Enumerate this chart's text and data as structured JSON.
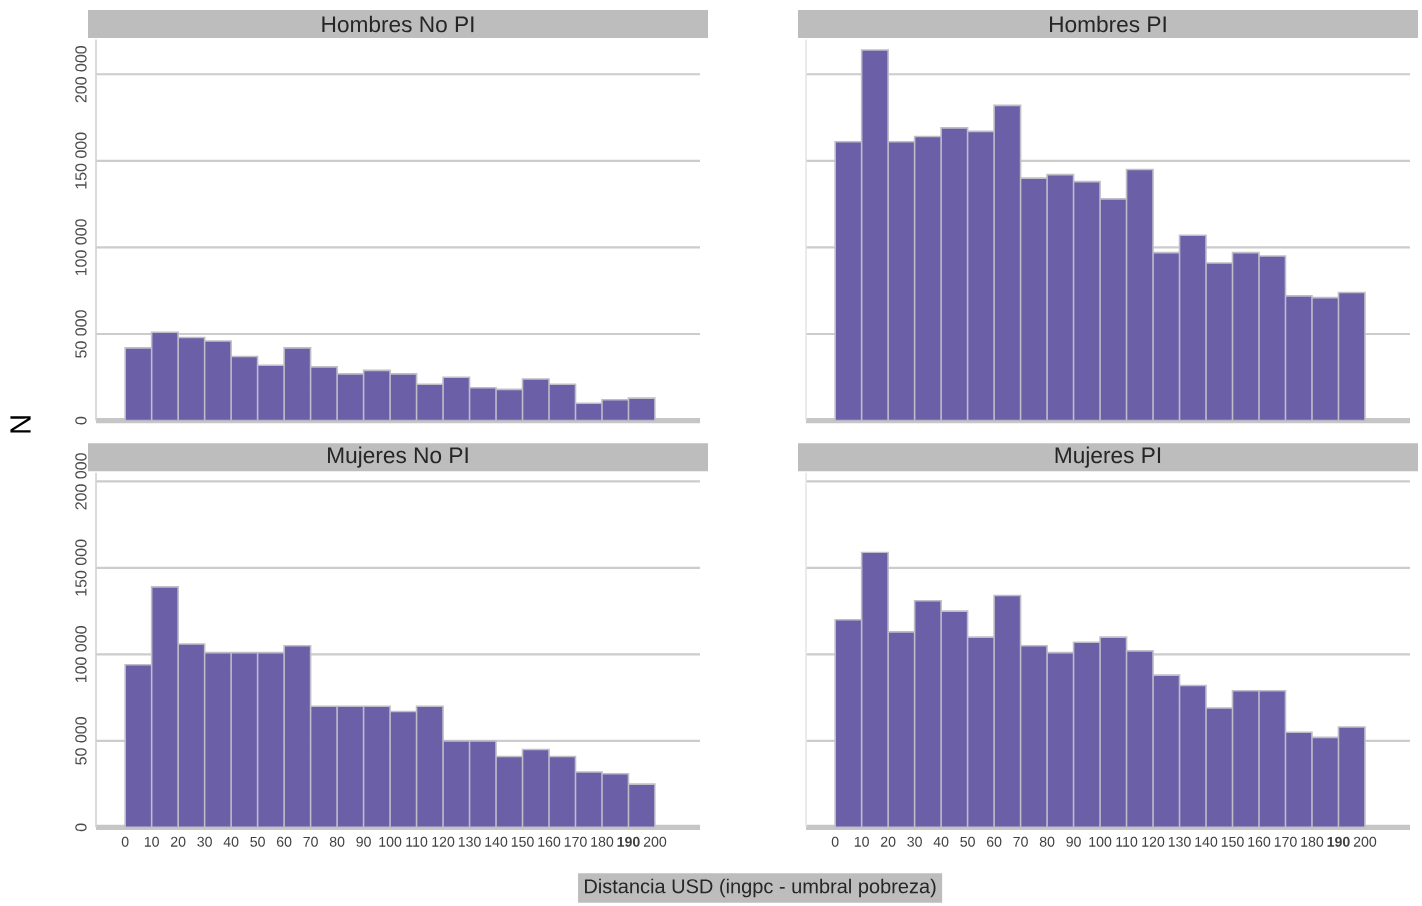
{
  "chart_data": [
    {
      "type": "histogram",
      "title": "Hombres No PI",
      "ylabel": "N",
      "color": "#6b5fa8",
      "bins": [
        0,
        10,
        20,
        30,
        40,
        50,
        60,
        70,
        80,
        90,
        100,
        110,
        120,
        130,
        140,
        150,
        160,
        170,
        180,
        190,
        200
      ],
      "values": [
        42000,
        51000,
        48000,
        46000,
        37000,
        32000,
        42000,
        31000,
        27000,
        29000,
        27000,
        21000,
        25000,
        19000,
        18000,
        24000,
        21000,
        10000,
        12000,
        13000
      ],
      "xlim": [
        -11,
        217
      ],
      "ylim": [
        0,
        220000
      ],
      "yticks": [
        0,
        {
          "value": 50000,
          "label": "50 000"
        },
        {
          "value": 100000,
          "label": "100 000"
        },
        {
          "value": 150000,
          "label": "150 000"
        },
        {
          "value": 200000,
          "label": "200 000"
        }
      ],
      "grid": "y",
      "tick_labels": "y"
    },
    {
      "type": "histogram",
      "title": "Hombres PI",
      "color": "#6b5fa8",
      "bins": [
        0,
        10,
        20,
        30,
        40,
        50,
        60,
        70,
        80,
        90,
        100,
        110,
        120,
        130,
        140,
        150,
        160,
        170,
        180,
        190,
        200
      ],
      "values": [
        161000,
        214000,
        161000,
        164000,
        169000,
        167000,
        182000,
        140000,
        142000,
        138000,
        128000,
        145000,
        97000,
        107000,
        91000,
        97000,
        95000,
        72000,
        71000,
        74000
      ],
      "xlim": [
        -11,
        217
      ],
      "ylim": [
        0,
        220000
      ],
      "yticks": [
        {
          "value": 0,
          "label": null
        },
        {
          "value": 50000,
          "label": null
        },
        {
          "value": 100000,
          "label": null
        },
        {
          "value": 150000,
          "label": null
        },
        {
          "value": 200000,
          "label": null
        }
      ],
      "grid": "y",
      "tick_labels": false
    },
    {
      "type": "histogram",
      "title": "Mujeres No PI",
      "color": "#6b5fa8",
      "bins": [
        0,
        10,
        20,
        30,
        40,
        50,
        60,
        70,
        80,
        90,
        100,
        110,
        120,
        130,
        140,
        150,
        160,
        170,
        180,
        190,
        200
      ],
      "values": [
        94000,
        139000,
        106000,
        101000,
        101000,
        101000,
        105000,
        70000,
        70000,
        70000,
        67000,
        70000,
        50000,
        50000,
        41000,
        45000,
        41000,
        32000,
        31000,
        25000
      ],
      "xlim": [
        -11,
        217
      ],
      "ylim": [
        0,
        205000
      ],
      "xticks": [
        0,
        10,
        20,
        30,
        40,
        50,
        60,
        70,
        80,
        90,
        100,
        110,
        120,
        130,
        140,
        150,
        160,
        170,
        180,
        {
          "value": 190,
          "label": "**190**"
        },
        200
      ],
      "yticks": [
        0,
        {
          "value": 50000,
          "label": "50 000"
        },
        {
          "value": 100000,
          "label": "100 000"
        },
        {
          "value": 150000,
          "label": "150 000"
        },
        {
          "value": 200000,
          "label": "200 000"
        }
      ],
      "grid": "y"
    },
    {
      "type": "histogram",
      "title": "Mujeres PI",
      "xlabel": "Distancia USD (ingpc - umbral pobreza)",
      "color": "#6b5fa8",
      "bins": [
        0,
        10,
        20,
        30,
        40,
        50,
        60,
        70,
        80,
        90,
        100,
        110,
        120,
        130,
        140,
        150,
        160,
        170,
        180,
        190,
        200
      ],
      "values": [
        120000,
        159000,
        113000,
        131000,
        125000,
        110000,
        134000,
        105000,
        101000,
        107000,
        110000,
        102000,
        88000,
        82000,
        69000,
        79000,
        79000,
        55000,
        52000,
        58000
      ],
      "xlim": [
        -11,
        217
      ],
      "ylim": [
        0,
        205000
      ],
      "xticks": [
        0,
        10,
        20,
        30,
        40,
        50,
        60,
        70,
        80,
        90,
        100,
        110,
        120,
        130,
        140,
        150,
        160,
        170,
        180,
        {
          "value": 190,
          "label": "**190**"
        },
        200
      ],
      "yticks": [
        {
          "value": 0,
          "label": null
        },
        {
          "value": 50000,
          "label": null
        },
        {
          "value": 100000,
          "label": null
        },
        {
          "value": 150000,
          "label": null
        },
        {
          "value": 200000,
          "label": null
        }
      ],
      "grid": "y",
      "tick_labels": "x"
    }
  ]
}
